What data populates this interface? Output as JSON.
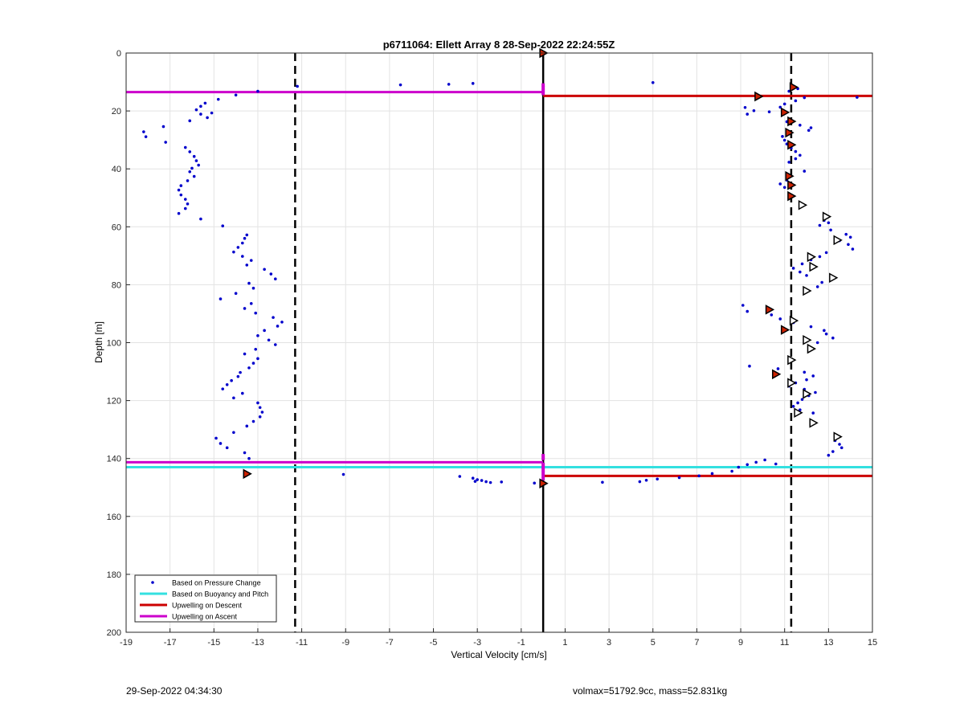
{
  "footer": {
    "timestamp": "29-Sep-2022 04:34:30",
    "float_info": "volmax=51792.9cc, mass=52.831kg"
  },
  "colors": {
    "pressure": "#0000cc",
    "buoyancy": "#33e0e0",
    "descent": "#cc0000",
    "ascent": "#cc00cc",
    "grid": "#e3e3e3"
  },
  "chart_data": {
    "type": "scatter",
    "title": "p6711064: Ellett Array 8 28-Sep-2022 22:24:55Z",
    "xlabel": "Vertical Velocity [cm/s]",
    "ylabel": "Depth [m]",
    "xlim": [
      -19,
      15
    ],
    "ylim": [
      0,
      200
    ],
    "y_reversed": true,
    "xticks": [
      -19,
      -17,
      -15,
      -13,
      -11,
      -9,
      -7,
      -5,
      -3,
      -1,
      1,
      3,
      5,
      7,
      9,
      11,
      13,
      15
    ],
    "yticks": [
      0,
      20,
      40,
      60,
      80,
      100,
      120,
      140,
      160,
      180,
      200
    ],
    "grid": true,
    "legend_position": "bottom-left",
    "legend": [
      {
        "label": "Based on Pressure Change",
        "kind": "dot",
        "color": "#0000cc"
      },
      {
        "label": "Based on Buoyancy and Pitch",
        "kind": "line",
        "color": "#33e0e0"
      },
      {
        "label": "Upwelling on Descent",
        "kind": "line",
        "color": "#cc0000"
      },
      {
        "label": "Upwelling on Ascent",
        "kind": "line",
        "color": "#cc00cc"
      }
    ],
    "vertical_lines": [
      {
        "x": -11.3,
        "style": "dashed",
        "color": "#000000"
      },
      {
        "x": 0,
        "style": "solid",
        "color": "#000000"
      },
      {
        "x": 11.3,
        "style": "dashed",
        "color": "#000000"
      }
    ],
    "upwelling_lines": [
      {
        "series": "Upwelling on Ascent",
        "x1": -19,
        "x2": 0,
        "y": 13.5,
        "color": "#cc00cc"
      },
      {
        "series": "Upwelling on Descent",
        "x1": 0,
        "x2": 15,
        "y": 14.8,
        "color": "#cc0000"
      },
      {
        "series": "Upwelling on Ascent",
        "x1": -19,
        "x2": 0,
        "y": 141.3,
        "color": "#cc00cc"
      },
      {
        "series": "Based on Buoyancy and Pitch",
        "x1": -19,
        "x2": 15,
        "y": 143.0,
        "color": "#33e0e0"
      },
      {
        "series": "Upwelling on Descent",
        "x1": 0,
        "x2": 15,
        "y": 146.0,
        "color": "#cc0000"
      }
    ],
    "series": [
      {
        "name": "Based on Pressure Change",
        "kind": "scatter",
        "x": [
          -11.2,
          -6.5,
          -4.3,
          -3.2,
          5.0,
          -13.0,
          -14.0,
          -14.8,
          -15.4,
          -15.6,
          -15.8,
          -15.6,
          -15.3,
          -15.1,
          -16.1,
          -17.3,
          -18.2,
          -18.1,
          -17.2,
          -16.3,
          -16.1,
          -15.9,
          -15.8,
          -15.7,
          -16.0,
          -16.1,
          -15.9,
          -16.2,
          -16.5,
          -16.6,
          -16.5,
          -16.3,
          -16.2,
          -16.3,
          -16.6,
          -15.6,
          -14.6,
          -13.5,
          -13.6,
          -13.7,
          -13.9,
          -14.1,
          -13.7,
          -13.3,
          -13.5,
          -12.7,
          -12.4,
          -12.2,
          -13.4,
          -13.2,
          -14.0,
          -14.7,
          -13.3,
          -13.6,
          -13.1,
          -12.3,
          -11.9,
          -12.1,
          -12.7,
          -13.0,
          -12.5,
          -12.2,
          -13.1,
          -13.6,
          -13.0,
          -13.2,
          -13.4,
          -13.8,
          -13.9,
          -14.2,
          -14.4,
          -14.6,
          -13.7,
          -14.1,
          -13.0,
          -12.9,
          -12.8,
          -12.9,
          -13.2,
          -13.5,
          -14.1,
          -14.9,
          -14.7,
          -14.4,
          -13.6,
          -13.4,
          -9.1,
          -3.8,
          -3.2,
          -3.0,
          -2.8,
          -2.6,
          -2.4,
          -1.9,
          -0.4,
          -3.1,
          2.7,
          4.4,
          4.7,
          5.2,
          6.2,
          7.1,
          7.7,
          8.6,
          8.9,
          9.3,
          9.7,
          10.1,
          10.6,
          9.2,
          9.6,
          9.3,
          10.3,
          10.8,
          11.0,
          11.5,
          11.9,
          11.1,
          11.7,
          12.2,
          12.1,
          12.8,
          13.0,
          12.6,
          13.1,
          13.8,
          14.0,
          13.5,
          13.9,
          14.1,
          12.9,
          12.6,
          12.2,
          11.8,
          11.4,
          11.7,
          12.0,
          12.7,
          12.5,
          9.1,
          9.3,
          10.4,
          10.8,
          11.4,
          12.2,
          12.8,
          12.9,
          13.2,
          12.5,
          9.4,
          10.7,
          11.9,
          12.3,
          12.0,
          11.5,
          11.2,
          11.9,
          12.4,
          12.1,
          11.8,
          11.6,
          11.4,
          11.7,
          12.3,
          13.3,
          13.5,
          13.6,
          13.2,
          13.0,
          14.3,
          11.2,
          11.6,
          11.3,
          10.9,
          11.0,
          11.1,
          11.3,
          11.5,
          11.7,
          11.5,
          11.2,
          11.9,
          11.1,
          10.8,
          11.0
        ],
        "y": [
          11.5,
          11.0,
          10.8,
          10.5,
          10.2,
          13.2,
          14.5,
          16.0,
          17.3,
          18.4,
          19.6,
          21.1,
          22.3,
          20.7,
          23.4,
          25.4,
          27.2,
          28.9,
          30.8,
          32.6,
          34.1,
          35.7,
          37.2,
          38.7,
          39.8,
          41.0,
          42.6,
          44.1,
          45.8,
          47.3,
          49.0,
          50.5,
          52.1,
          53.7,
          55.4,
          57.3,
          59.7,
          62.8,
          64.0,
          65.6,
          67.1,
          68.7,
          70.2,
          71.6,
          73.2,
          74.7,
          76.3,
          78.0,
          79.5,
          81.2,
          83.0,
          84.9,
          86.5,
          88.2,
          89.8,
          91.3,
          92.9,
          94.3,
          95.8,
          97.6,
          99.1,
          100.7,
          102.3,
          103.9,
          105.5,
          107.1,
          108.7,
          110.3,
          111.7,
          113.1,
          114.5,
          116.0,
          117.5,
          119.1,
          120.8,
          122.4,
          124.0,
          125.6,
          127.2,
          128.8,
          131.0,
          133.0,
          134.8,
          136.3,
          138.0,
          140.0,
          145.5,
          146.2,
          146.8,
          147.3,
          147.6,
          148.0,
          148.3,
          148.1,
          148.5,
          147.9,
          148.2,
          148.0,
          147.5,
          147.1,
          146.6,
          146.0,
          145.2,
          144.4,
          143.0,
          142.1,
          141.3,
          140.5,
          141.9,
          18.8,
          19.9,
          21.1,
          20.3,
          18.7,
          17.6,
          16.5,
          15.4,
          23.7,
          24.9,
          25.8,
          26.7,
          57.8,
          58.6,
          59.5,
          61.1,
          62.6,
          63.6,
          64.8,
          66.1,
          67.7,
          68.9,
          70.3,
          71.4,
          72.8,
          74.3,
          75.6,
          76.8,
          79.2,
          80.7,
          87.1,
          89.2,
          90.4,
          91.8,
          93.1,
          94.5,
          95.8,
          97.0,
          98.4,
          100.0,
          108.1,
          109.0,
          110.2,
          111.5,
          112.8,
          113.9,
          115.0,
          116.1,
          117.2,
          118.3,
          119.6,
          120.8,
          122.0,
          123.2,
          124.3,
          133.8,
          135.1,
          136.3,
          137.6,
          138.9,
          15.3,
          13.2,
          12.3,
          11.5,
          28.8,
          30.1,
          31.4,
          32.8,
          34.0,
          35.3,
          36.5,
          37.7,
          40.8,
          43.9,
          45.2,
          46.4
        ]
      }
    ],
    "triangles_filled": {
      "x": [
        0,
        11.4,
        9.8,
        11.0,
        11.3,
        11.2,
        11.3,
        11.2,
        11.3,
        11.3,
        10.3,
        11.0,
        10.6,
        -13.5,
        0
      ],
      "y": [
        0,
        11.8,
        15.0,
        20.5,
        23.6,
        27.5,
        31.7,
        42.5,
        45.6,
        49.4,
        88.6,
        95.6,
        110.9,
        145.3,
        148.6
      ]
    },
    "triangles_open": {
      "x": [
        11.8,
        12.9,
        13.4,
        12.2,
        12.3,
        12.0,
        13.2,
        11.4,
        12.0,
        12.2,
        11.3,
        11.3,
        12.0,
        11.6,
        12.3,
        13.4
      ],
      "y": [
        52.5,
        56.5,
        64.6,
        70.4,
        73.8,
        82.1,
        77.6,
        92.4,
        99.1,
        102.1,
        106.0,
        113.9,
        117.7,
        124.2,
        127.7,
        132.5
      ]
    }
  }
}
